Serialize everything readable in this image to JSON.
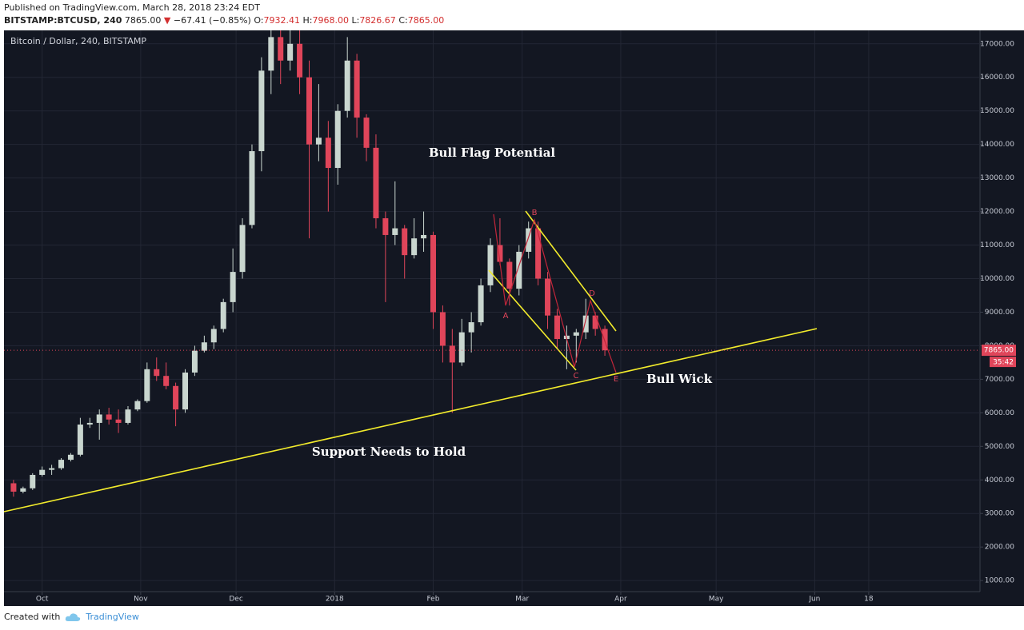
{
  "header": {
    "published": "Published on TradingView.com, March 28, 2018 23:24 EDT",
    "symbol": "BITSTAMP:BTCUSD, 240",
    "last": "7865.00",
    "change": "−67.41 (−0.85%)",
    "ohlc": [
      {
        "label": "O:",
        "value": "7932.41"
      },
      {
        "label": "H:",
        "value": "7968.00"
      },
      {
        "label": "L:",
        "value": "7826.67"
      },
      {
        "label": "C:",
        "value": "7865.00"
      }
    ]
  },
  "footer": {
    "created": "Created with",
    "brand": "TradingView"
  },
  "chart_data": {
    "type": "candlestick",
    "title": "Bitcoin / Dollar, 240, BITSTAMP",
    "up_color": "#c9d6cf",
    "down_color": "#e0455a",
    "grid": true,
    "x": [
      -9,
      -6,
      -3,
      0,
      3,
      6,
      9,
      12,
      15,
      18,
      21,
      24,
      27,
      30,
      33,
      36,
      39,
      42,
      45,
      48,
      51,
      54,
      57,
      60,
      63,
      66,
      69,
      72,
      75,
      78,
      81,
      84,
      87,
      90,
      93,
      96,
      99,
      102,
      105,
      108,
      111,
      114,
      117,
      120,
      123,
      126,
      129,
      132,
      135,
      138,
      141,
      144,
      147,
      150,
      153,
      156,
      159,
      162,
      165,
      168,
      171,
      174,
      177
    ],
    "open": [
      3900,
      3650,
      3750,
      4150,
      4300,
      4350,
      4600,
      4750,
      5650,
      5700,
      5950,
      5800,
      5700,
      6100,
      6350,
      7300,
      7100,
      6800,
      6100,
      7200,
      7850,
      8100,
      8500,
      9300,
      10200,
      11600,
      13800,
      16200,
      17200,
      16500,
      17000,
      16000,
      14000,
      14200,
      13300,
      15000,
      16500,
      14800,
      13900,
      11800,
      11300,
      11500,
      10700,
      11200,
      11300,
      9000,
      8000,
      7500,
      8400,
      8700,
      9800,
      11000,
      10500,
      9700,
      10800,
      11500,
      10000,
      8900,
      8200,
      8300,
      8400,
      8900,
      8500
    ],
    "high": [
      4000,
      3800,
      4200,
      4400,
      4450,
      4650,
      4800,
      5850,
      5850,
      6100,
      6150,
      6100,
      6200,
      6400,
      7500,
      7650,
      7500,
      6900,
      7300,
      8000,
      8300,
      8600,
      9400,
      10900,
      11800,
      14000,
      16600,
      17400,
      17400,
      17400,
      17400,
      16500,
      15800,
      14700,
      15200,
      17200,
      16700,
      14900,
      14300,
      12000,
      12900,
      11600,
      11800,
      12000,
      11400,
      9200,
      8500,
      8800,
      9000,
      10000,
      11200,
      11800,
      10600,
      11000,
      11700,
      11700,
      10200,
      9100,
      8600,
      8500,
      9400,
      9000,
      8600
    ],
    "low": [
      3500,
      3600,
      3700,
      4100,
      4150,
      4300,
      4550,
      4700,
      5550,
      5200,
      5650,
      5400,
      5650,
      6050,
      6300,
      6950,
      6700,
      5600,
      6000,
      7100,
      7800,
      7900,
      8400,
      9000,
      10000,
      11500,
      13200,
      15500,
      15800,
      16200,
      15500,
      11200,
      13500,
      12000,
      12800,
      14800,
      14200,
      13500,
      11500,
      9300,
      11000,
      10000,
      10600,
      10800,
      8500,
      7500,
      6000,
      7400,
      7800,
      8600,
      9600,
      10400,
      9200,
      9500,
      10600,
      9800,
      8500,
      7900,
      7300,
      7500,
      8200,
      8300,
      7700
    ],
    "close": [
      3650,
      3750,
      4150,
      4300,
      4350,
      4600,
      4750,
      5650,
      5700,
      5950,
      5800,
      5700,
      6100,
      6350,
      7300,
      7100,
      6800,
      6100,
      7200,
      7850,
      8100,
      8500,
      9300,
      10200,
      11600,
      13800,
      16200,
      17200,
      16500,
      17000,
      16000,
      14000,
      14200,
      13300,
      15000,
      16500,
      14800,
      13900,
      11800,
      11300,
      11500,
      10700,
      11200,
      11300,
      9000,
      8000,
      7500,
      8400,
      8700,
      9800,
      11000,
      10500,
      9700,
      10800,
      11500,
      10000,
      8900,
      8200,
      8300,
      8400,
      8900,
      8500,
      7865
    ],
    "xlim": [
      -12,
      295
    ],
    "ylim": [
      670,
      17400
    ],
    "xticks": [
      {
        "value": 0,
        "label": "Oct"
      },
      {
        "value": 31,
        "label": "Nov"
      },
      {
        "value": 61,
        "label": "Dec"
      },
      {
        "value": 92,
        "label": "2018"
      },
      {
        "value": 123,
        "label": "Feb"
      },
      {
        "value": 151,
        "label": "Mar"
      },
      {
        "value": 182,
        "label": "Apr"
      },
      {
        "value": 212,
        "label": "May"
      },
      {
        "value": 243,
        "label": "Jun"
      },
      {
        "value": 260,
        "label": "18"
      }
    ],
    "yticks": [
      {
        "value": 1000,
        "label": "1000.00"
      },
      {
        "value": 2000,
        "label": "2000.00"
      },
      {
        "value": 3000,
        "label": "3000.00"
      },
      {
        "value": 4000,
        "label": "4000.00"
      },
      {
        "value": 5000,
        "label": "5000.00"
      },
      {
        "value": 6000,
        "label": "6000.00"
      },
      {
        "value": 7000,
        "label": "7000.00"
      },
      {
        "value": 8000,
        "label": "8000.00"
      },
      {
        "value": 9000,
        "label": "9000.00"
      },
      {
        "value": 10000,
        "label": "10000.00"
      },
      {
        "value": 11000,
        "label": "11000.00"
      },
      {
        "value": 12000,
        "label": "12000.00"
      },
      {
        "value": 13000,
        "label": "13000.00"
      },
      {
        "value": 14000,
        "label": "14000.00"
      },
      {
        "value": 15000,
        "label": "15000.00"
      },
      {
        "value": 16000,
        "label": "16000.00"
      },
      {
        "value": 17000,
        "label": "17000.00"
      }
    ],
    "last_price": {
      "value": 7865,
      "label": "7865.00"
    },
    "countdown": "35:42",
    "annotations": {
      "flag": "Bull Flag Potential",
      "wick": "Bull Wick",
      "support": "Support Needs to Hold",
      "wave": [
        "A",
        "B",
        "C",
        "D",
        "E"
      ]
    }
  }
}
